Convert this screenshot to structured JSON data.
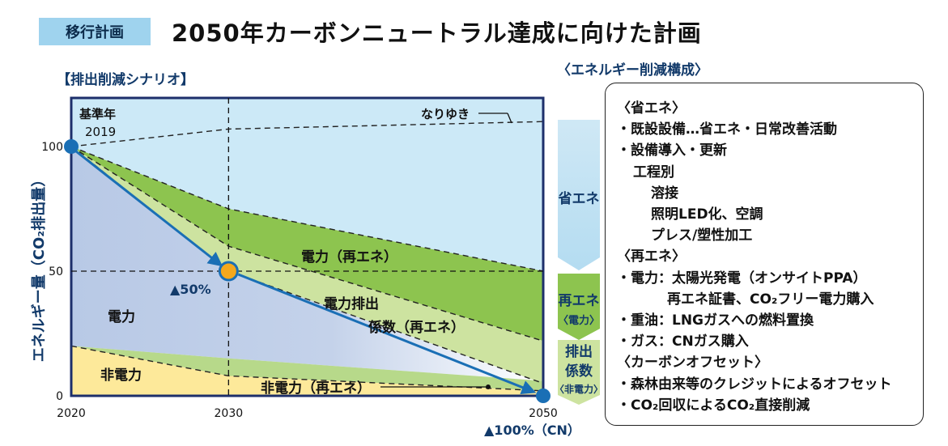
{
  "header": {
    "tag": "移行計画",
    "title": "2050年カーボンニュートラル達成に向けた計画"
  },
  "scenario_heading": "【排出削減シナリオ】",
  "composition_heading": "〈エネルギー削減構成〉",
  "chart_data": {
    "type": "area",
    "ylabel": "エネルギー量（CO₂排出量）",
    "xlim": [
      2020,
      2050
    ],
    "ylim": [
      0,
      100
    ],
    "x_ticks": [
      "2020",
      "2030",
      "2050"
    ],
    "y_ticks": [
      "0",
      "50",
      "100"
    ],
    "x_values": [
      2020,
      2030,
      2050
    ],
    "lines": {
      "bau": [
        100,
        107,
        110
      ],
      "upper_dashed": [
        100,
        75,
        50
      ],
      "mid_dashed": [
        100,
        60,
        22
      ],
      "lower_dashed": [
        100,
        50,
        5
      ],
      "nonpower_top": [
        20,
        15,
        6
      ],
      "nonpower_dashed": [
        20,
        8,
        2
      ],
      "path": [
        100,
        50,
        0
      ]
    },
    "base_year_label": "基準年",
    "base_year": "2019",
    "bau_label": "なりゆき",
    "target_2030": "▲50%",
    "target_2050": "▲100%（CN）",
    "regions": {
      "renew_power": "電力（再エネ）",
      "emission_factor_1": "電力排出",
      "emission_factor_2": "係数（再エネ）",
      "power": "電力",
      "non_power": "非電力",
      "non_power_renew": "非電力（再エネ）"
    },
    "colors": {
      "sky": "#cce9f7",
      "dark_green": "#8dc44f",
      "light_green": "#cde3a0",
      "power": "#b8c9e6",
      "non_power": "#fde99a",
      "axis": "#1d2f6b",
      "arrow": "#1a6fb5",
      "target_2030": "#f4a81d"
    }
  },
  "stack": {
    "savings": "省エネ",
    "renew": "再エネ",
    "renew_sub": "〈電力〉",
    "ef1": "排出",
    "ef2": "係数",
    "ef_sub": "〈非電力〉"
  },
  "composition": {
    "lines": [
      "〈省エネ〉",
      "・既設設備…省エネ・日常改善活動",
      "・設備導入・更新",
      "工程別",
      "溶接",
      "照明LED化、空調",
      "プレス/塑性加工",
      "〈再エネ〉",
      "・電力：太陽光発電（オンサイトPPA）",
      "再エネ証書、CO₂フリー電力購入",
      "・重油：LNGガスへの燃料置換",
      "・ガス：CNガス購入",
      "〈カーボンオフセット〉",
      "・森林由来等のクレジットによるオフセット",
      "・CO₂回収によるCO₂直接削減"
    ]
  }
}
